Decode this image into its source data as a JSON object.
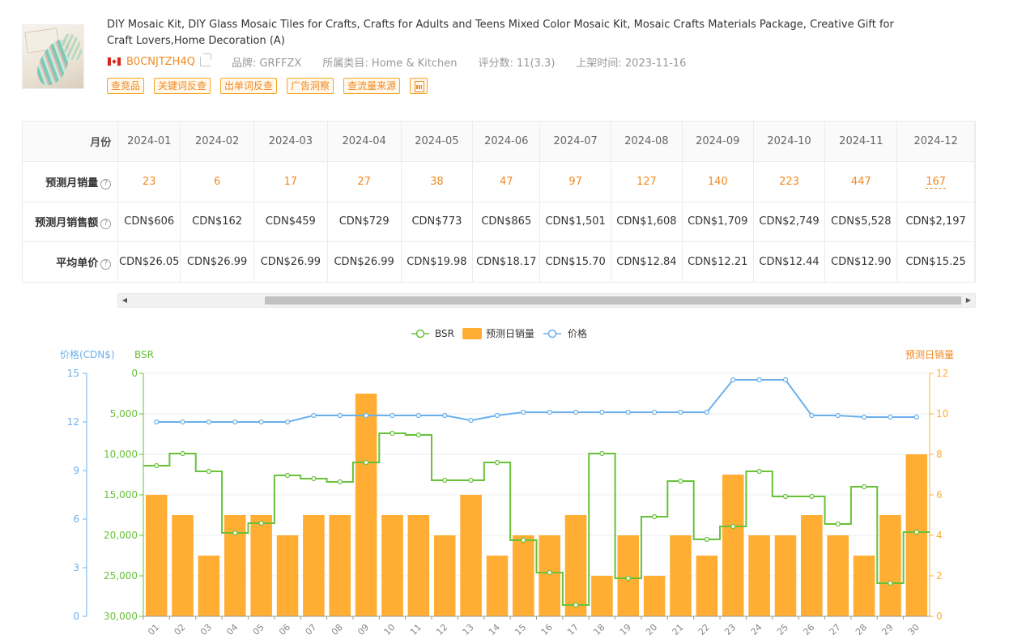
{
  "product": {
    "title": "DIY Mosaic Kit, DIY Glass Mosaic Tiles for Crafts, Crafts for Adults and Teens Mixed Color Mosaic Kit, Mosaic Crafts Materials Package, Creative Gift for Craft Lovers,Home Decoration (A)",
    "asin": "B0CNJTZH4Q",
    "brand": "品牌: GRFFZX",
    "category": "所属类目: Home & Kitchen",
    "rating": "评分数: 11(3.3)",
    "listed": "上架时间: 2023-11-16",
    "tags": [
      "查竞品",
      "关键词反查",
      "出单词反查",
      "广告洞察",
      "查流量来源"
    ]
  },
  "table": {
    "headers": {
      "month": "月份",
      "units": "预测月销量",
      "revenue": "预测月销售额",
      "price": "平均单价"
    },
    "months": [
      "2024-01",
      "2024-02",
      "2024-03",
      "2024-04",
      "2024-05",
      "2024-06",
      "2024-07",
      "2024-08",
      "2024-09",
      "2024-10",
      "2024-11",
      "2024-12"
    ],
    "units": [
      "23",
      "6",
      "17",
      "27",
      "38",
      "47",
      "97",
      "127",
      "140",
      "223",
      "447",
      "167"
    ],
    "revenue": [
      "CDN$606",
      "CDN$162",
      "CDN$459",
      "CDN$729",
      "CDN$773",
      "CDN$865",
      "CDN$1,501",
      "CDN$1,608",
      "CDN$1,709",
      "CDN$2,749",
      "CDN$5,528",
      "CDN$2,197"
    ],
    "price": [
      "CDN$26.05",
      "CDN$26.99",
      "CDN$26.99",
      "CDN$26.99",
      "CDN$19.98",
      "CDN$18.17",
      "CDN$15.70",
      "CDN$12.84",
      "CDN$12.21",
      "CDN$12.44",
      "CDN$12.90",
      "CDN$15.25"
    ]
  },
  "chart_data": {
    "type": "bar",
    "legend": [
      "BSR",
      "预测日销量",
      "价格"
    ],
    "axes": {
      "price_label": "价格(CDN$)",
      "bsr_label": "BSR",
      "units_label": "预测日销量",
      "price_ticks": [
        "15",
        "12",
        "9",
        "6",
        "3",
        "0"
      ],
      "bsr_ticks": [
        "0",
        "5,000",
        "10,000",
        "15,000",
        "20,000",
        "25,000",
        "30,000"
      ],
      "units_ticks": [
        "12",
        "10",
        "8",
        "6",
        "4",
        "2",
        "0"
      ],
      "price_range": [
        0,
        15
      ],
      "bsr_range": [
        0,
        30000
      ],
      "units_range": [
        0,
        12
      ]
    },
    "x": [
      "01",
      "02",
      "03",
      "04",
      "05",
      "06",
      "07",
      "08",
      "09",
      "10",
      "11",
      "12",
      "13",
      "14",
      "15",
      "16",
      "17",
      "18",
      "19",
      "20",
      "21",
      "22",
      "23",
      "24",
      "25",
      "26",
      "27",
      "28",
      "29",
      "30"
    ],
    "daily_units": [
      6,
      5,
      3,
      5,
      5,
      4,
      5,
      5,
      11,
      5,
      5,
      4,
      6,
      3,
      4,
      4,
      5,
      2,
      4,
      2,
      4,
      3,
      7,
      4,
      4,
      5,
      4,
      3,
      5,
      8
    ],
    "bsr": [
      11400,
      9900,
      12100,
      19700,
      18500,
      12600,
      13000,
      13400,
      11000,
      7400,
      7600,
      13200,
      13200,
      11000,
      20600,
      24600,
      28600,
      9900,
      25300,
      17700,
      13300,
      20500,
      18900,
      12100,
      15200,
      15200,
      18600,
      14000,
      25900,
      19600
    ],
    "price": [
      12.0,
      12.0,
      12.0,
      12.0,
      12.0,
      12.0,
      12.4,
      12.4,
      12.4,
      12.4,
      12.4,
      12.4,
      12.1,
      12.4,
      12.6,
      12.6,
      12.6,
      12.6,
      12.6,
      12.6,
      12.6,
      12.6,
      14.6,
      14.6,
      14.6,
      12.4,
      12.4,
      12.3,
      12.3,
      12.3
    ],
    "colors": {
      "bsr": "#67c23a",
      "units": "#ffad33",
      "price": "#6ab0ec"
    },
    "grid": true,
    "legend_position": "top-center"
  }
}
